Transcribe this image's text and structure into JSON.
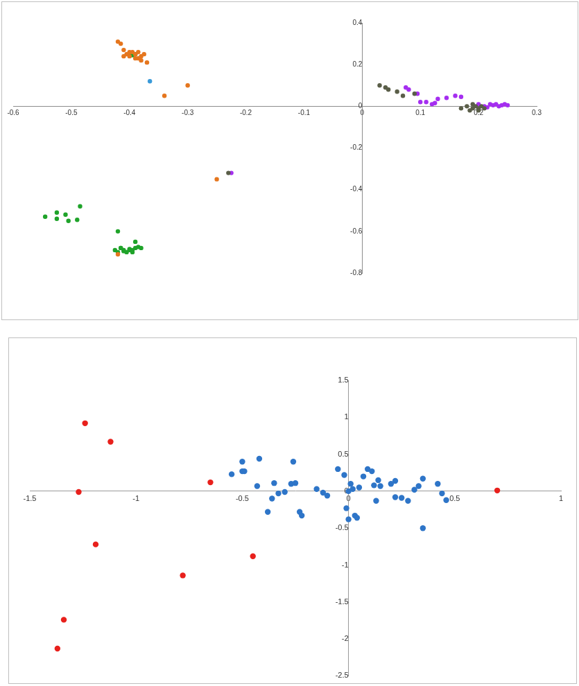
{
  "chart_data": [
    {
      "type": "scatter",
      "grid": false,
      "marker": "circle",
      "xlim": [
        -0.6,
        0.3
      ],
      "xticks": [
        -0.6,
        -0.5,
        -0.4,
        -0.3,
        -0.2,
        -0.1,
        0,
        0.1,
        0.2,
        0.3
      ],
      "ylim": [
        -0.8,
        0.4
      ],
      "yticks": [
        -0.8,
        -0.6,
        -0.4,
        -0.2,
        0,
        0.2,
        0.4
      ],
      "series": [
        {
          "color": "#e5761e",
          "x": [
            -0.42,
            -0.415,
            -0.41,
            -0.405,
            -0.4,
            -0.395,
            -0.39,
            -0.385,
            -0.38,
            -0.38,
            -0.39,
            -0.41,
            -0.4,
            -0.375,
            -0.385,
            -0.37,
            -0.34,
            -0.3,
            -0.25,
            -0.42
          ],
          "values": [
            0.31,
            0.3,
            0.27,
            0.25,
            0.24,
            0.26,
            0.25,
            0.26,
            0.24,
            0.22,
            0.23,
            0.24,
            0.26,
            0.25,
            0.23,
            0.21,
            0.05,
            0.1,
            -0.35,
            -0.71
          ]
        },
        {
          "color": "#1fa32a",
          "x": [
            -0.4,
            -0.395,
            -0.39,
            -0.545,
            -0.525,
            -0.51,
            -0.525,
            -0.505,
            -0.485,
            -0.49,
            -0.42,
            -0.39,
            -0.425,
            -0.42,
            -0.415,
            -0.41,
            -0.405,
            -0.4,
            -0.395,
            -0.39,
            -0.385,
            -0.38,
            -0.41,
            -0.4,
            -0.395,
            -0.415
          ],
          "values": [
            0.25,
            0.245,
            0.25,
            -0.53,
            -0.51,
            -0.52,
            -0.54,
            -0.55,
            -0.48,
            -0.545,
            -0.6,
            -0.65,
            -0.69,
            -0.7,
            -0.68,
            -0.69,
            -0.7,
            -0.685,
            -0.69,
            -0.68,
            -0.675,
            -0.68,
            -0.695,
            -0.69,
            -0.7,
            -0.68
          ]
        },
        {
          "color": "#3a9ad9",
          "x": [
            -0.365
          ],
          "values": [
            0.12
          ]
        },
        {
          "color": "#5a5e48",
          "x": [
            0.03,
            0.04,
            0.045,
            0.06,
            0.07,
            0.09,
            0.17,
            0.18,
            0.19,
            0.185,
            0.195,
            0.2,
            0.205,
            0.21,
            0.2,
            0.19,
            -0.23
          ],
          "values": [
            0.1,
            0.09,
            0.08,
            0.07,
            0.05,
            0.06,
            -0.01,
            0,
            -0.01,
            -0.02,
            0,
            -0.01,
            0,
            -0.01,
            -0.02,
            0.01,
            -0.32
          ]
        },
        {
          "color": "#a52ef0",
          "x": [
            0.075,
            0.08,
            0.095,
            0.1,
            0.11,
            0.12,
            0.125,
            0.13,
            0.145,
            0.16,
            0.17,
            0.2,
            0.21,
            0.22,
            0.225,
            0.23,
            0.235,
            0.24,
            0.245,
            0.25,
            0.215,
            -0.225
          ],
          "values": [
            0.09,
            0.08,
            0.06,
            0.02,
            0.02,
            0.01,
            0.015,
            0.035,
            0.04,
            0.05,
            0.045,
            0.01,
            0,
            0.01,
            0.005,
            0.01,
            0,
            0.005,
            0.01,
            0.005,
            -0.005,
            -0.32
          ]
        }
      ]
    },
    {
      "type": "scatter",
      "grid": false,
      "marker": "circle",
      "xlim": [
        -1.5,
        1
      ],
      "xticks": [
        -1.5,
        -1,
        -0.5,
        0,
        0.5,
        1
      ],
      "ylim": [
        -2.5,
        1.5
      ],
      "yticks": [
        -2.5,
        -2,
        -1.5,
        -1,
        -0.5,
        0,
        0.5,
        1,
        1.5
      ],
      "series": [
        {
          "color": "#2e75c8",
          "x": [
            -0.55,
            -0.5,
            -0.49,
            -0.42,
            -0.43,
            -0.38,
            -0.36,
            -0.35,
            -0.33,
            -0.3,
            -0.27,
            -0.26,
            -0.25,
            -0.23,
            -0.22,
            -0.15,
            -0.12,
            -0.1,
            -0.05,
            -0.02,
            0,
            -0.01,
            0,
            0.01,
            0.02,
            0.03,
            0.04,
            0.05,
            0.07,
            0.09,
            0.11,
            0.12,
            0.13,
            0.14,
            0.15,
            0.2,
            0.22,
            0.22,
            0.25,
            0.28,
            0.31,
            0.33,
            0.35,
            0.35,
            0.42,
            0.44,
            0.46,
            -0.5
          ],
          "values": [
            0.23,
            0.4,
            0.27,
            0.44,
            0.07,
            -0.28,
            -0.1,
            0.11,
            -0.03,
            -0.01,
            0.1,
            0.4,
            0.11,
            -0.28,
            -0.33,
            0.03,
            -0.02,
            -0.06,
            0.3,
            0.22,
            0,
            -0.23,
            -0.38,
            0.1,
            0.03,
            -0.33,
            -0.36,
            0.05,
            0.2,
            0.3,
            0.27,
            0.08,
            -0.13,
            0.15,
            0.07,
            0.1,
            0.14,
            -0.08,
            -0.09,
            -0.13,
            0.02,
            0.07,
            0.17,
            -0.5,
            0.1,
            -0.03,
            -0.12,
            0.27
          ]
        },
        {
          "color": "#e8201c",
          "x": [
            -1.37,
            -1.34,
            -1.27,
            -1.24,
            -1.19,
            -1.12,
            -0.78,
            -0.65,
            -0.45,
            0.7
          ],
          "values": [
            -2.13,
            -1.74,
            -0.01,
            0.92,
            -0.72,
            0.67,
            -1.14,
            0.12,
            -0.88,
            0.01
          ]
        }
      ]
    }
  ]
}
